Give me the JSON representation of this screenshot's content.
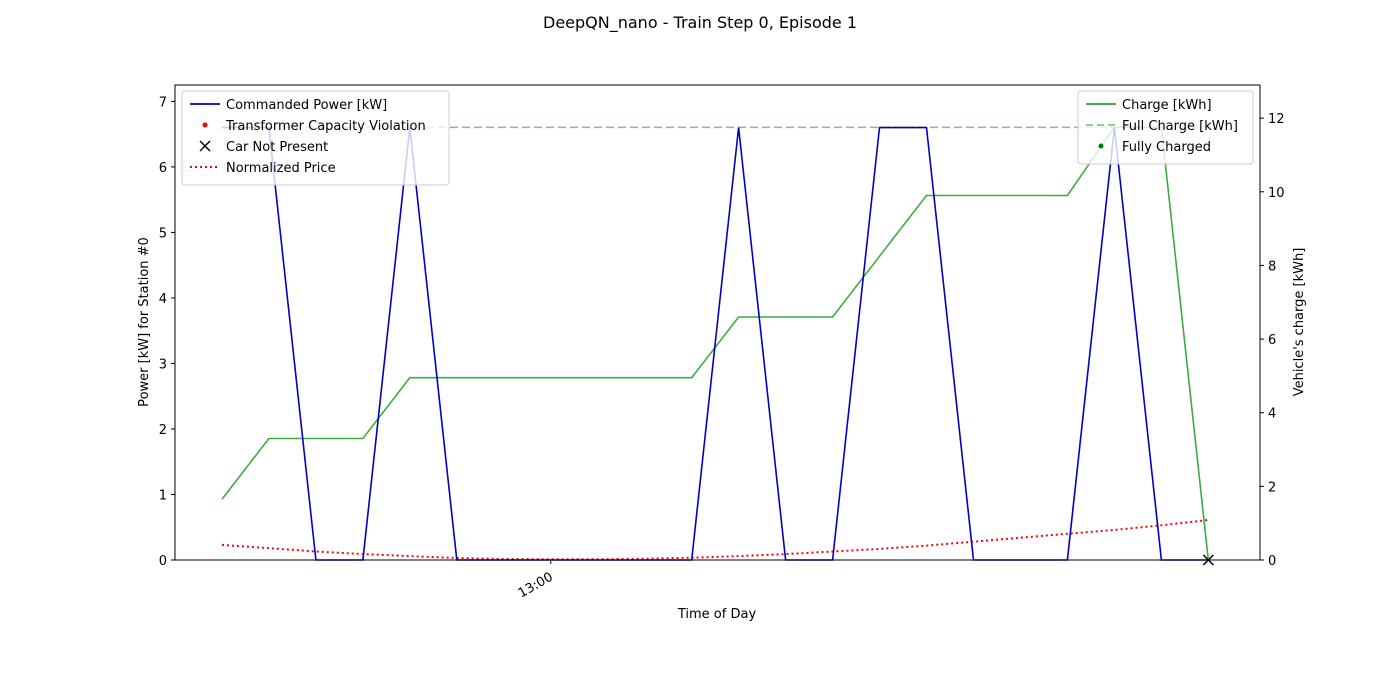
{
  "colors": {
    "commanded_power": "#0000cc",
    "price": "#ff0000",
    "violation": "#ff0000",
    "not_present": "#000000",
    "charge": "#2ca02c",
    "full_charge": "#2ca02c",
    "fully_charged": "#008000"
  },
  "chart_data": {
    "type": "line",
    "title": "DeepQN_nano - Train Step 0, Episode 1",
    "xlabel": "Time of Day",
    "ylabel_left": "Power [kW] for Station #0",
    "ylabel_right": "Vehicle's charge [kWh]",
    "x_tick_labels": [
      "13:00"
    ],
    "x_tick_positions": [
      7
    ],
    "xlim": [
      -1,
      22.1
    ],
    "ylim_left": [
      0,
      7.25
    ],
    "ylim_right": [
      0,
      12.9
    ],
    "y_ticks_left": [
      0,
      1,
      2,
      3,
      4,
      5,
      6,
      7
    ],
    "y_ticks_right": [
      0,
      2,
      4,
      6,
      8,
      10,
      12
    ],
    "grid": false,
    "legend_left_position": "upper-left",
    "legend_right_position": "upper-right",
    "legend_left": [
      {
        "label": "Commanded Power [kW]",
        "marker": "line",
        "color_key": "commanded_power"
      },
      {
        "label": "Transformer Capacity Violation",
        "marker": "dot",
        "color_key": "violation"
      },
      {
        "label": "Car Not Present",
        "marker": "x",
        "color_key": "not_present"
      },
      {
        "label": "Normalized Price",
        "marker": "dotted",
        "color_key": "price"
      }
    ],
    "legend_right": [
      {
        "label": "Charge [kWh]",
        "marker": "line",
        "color_key": "charge"
      },
      {
        "label": "Full Charge [kWh]",
        "marker": "dashed",
        "color_key": "full_charge"
      },
      {
        "label": "Fully Charged",
        "marker": "dot",
        "color_key": "fully_charged"
      }
    ],
    "series": [
      {
        "name": "Commanded Power [kW]",
        "axis": "left",
        "style": "solid",
        "color_key": "commanded_power",
        "x": [
          0,
          1,
          2,
          3,
          4,
          5,
          6,
          7,
          8,
          9,
          10,
          11,
          12,
          13,
          14,
          15,
          16,
          17,
          18,
          19,
          20,
          21
        ],
        "y": [
          6.6,
          6.6,
          0,
          0,
          6.6,
          0,
          0,
          0,
          0,
          0,
          0,
          6.6,
          0,
          0,
          6.6,
          6.6,
          0,
          0,
          0,
          6.6,
          0,
          0
        ]
      },
      {
        "name": "Normalized Price",
        "axis": "left",
        "style": "dotted",
        "color_key": "price",
        "x": [
          0,
          1,
          2,
          3,
          4,
          5,
          6,
          7,
          8,
          9,
          10,
          11,
          12,
          13,
          14,
          15,
          16,
          17,
          18,
          19,
          20,
          21
        ],
        "y": [
          0.23,
          0.18,
          0.13,
          0.09,
          0.06,
          0.03,
          0.015,
          0.01,
          0.01,
          0.02,
          0.035,
          0.06,
          0.09,
          0.13,
          0.17,
          0.22,
          0.28,
          0.34,
          0.4,
          0.46,
          0.53,
          0.61
        ]
      },
      {
        "name": "Charge [kWh]",
        "axis": "right",
        "style": "solid",
        "color_key": "charge",
        "x": [
          0,
          1,
          2,
          3,
          4,
          5,
          6,
          7,
          8,
          9,
          10,
          11,
          12,
          13,
          14,
          15,
          16,
          17,
          18,
          19,
          20,
          21
        ],
        "y": [
          1.65,
          3.3,
          3.3,
          3.3,
          4.95,
          4.95,
          4.95,
          4.95,
          4.95,
          4.95,
          4.95,
          6.6,
          6.6,
          6.6,
          8.25,
          9.9,
          9.9,
          9.9,
          9.9,
          11.75,
          11.75,
          0
        ]
      },
      {
        "name": "Full Charge [kWh]",
        "axis": "right",
        "style": "dashed",
        "color_key": "full_charge",
        "x": [
          0,
          21
        ],
        "y": [
          11.75,
          11.75
        ]
      }
    ],
    "markers": [
      {
        "name": "Car Not Present",
        "axis": "left",
        "shape": "x",
        "color_key": "not_present",
        "x": 21,
        "y": 0
      }
    ]
  }
}
